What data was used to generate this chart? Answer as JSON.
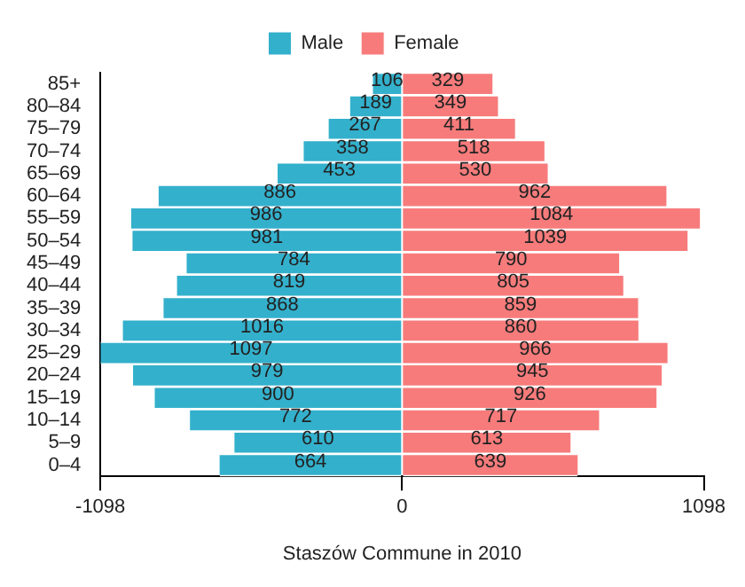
{
  "chart_data": {
    "type": "bar",
    "orientation": "horizontal",
    "xlabel": "Staszów Commune in 2010",
    "legend": "top",
    "categories": [
      "85+",
      "80–84",
      "75–79",
      "70–74",
      "65–69",
      "60–64",
      "55–59",
      "50–54",
      "45–49",
      "40–44",
      "35–39",
      "30–34",
      "25–29",
      "20–24",
      "15–19",
      "10–14",
      "5–9",
      "0–4"
    ],
    "xlim": [
      -1098,
      1098
    ],
    "xticks": [
      -1098,
      0,
      1098
    ],
    "series": [
      {
        "name": "Male",
        "color": "#33b0cc",
        "base": [
          -106,
          -189,
          -267,
          -358,
          -453,
          -886,
          -986,
          -981,
          -784,
          -819,
          -868,
          -1016,
          -1097,
          -979,
          -900,
          -772,
          -610,
          -664
        ],
        "values": [
          106,
          189,
          267,
          358,
          453,
          886,
          986,
          981,
          784,
          819,
          868,
          1016,
          1097,
          979,
          900,
          772,
          610,
          664
        ],
        "value_labels": [
          "106",
          "189",
          "267",
          "358",
          "453",
          "886",
          "986",
          "981",
          "784",
          "819",
          "868",
          "1016",
          "1097",
          "979",
          "900",
          "772",
          "610",
          "664"
        ]
      },
      {
        "name": "Female",
        "color": "#f77b7b",
        "values": [
          329,
          349,
          411,
          518,
          530,
          962,
          1084,
          1039,
          790,
          805,
          859,
          860,
          966,
          945,
          926,
          717,
          613,
          639
        ],
        "value_labels": [
          "329",
          "349",
          "411",
          "518",
          "530",
          "962",
          "1084",
          "1039",
          "790",
          "805",
          "859",
          "860",
          "966",
          "945",
          "926",
          "717",
          "613",
          "639"
        ]
      }
    ]
  }
}
